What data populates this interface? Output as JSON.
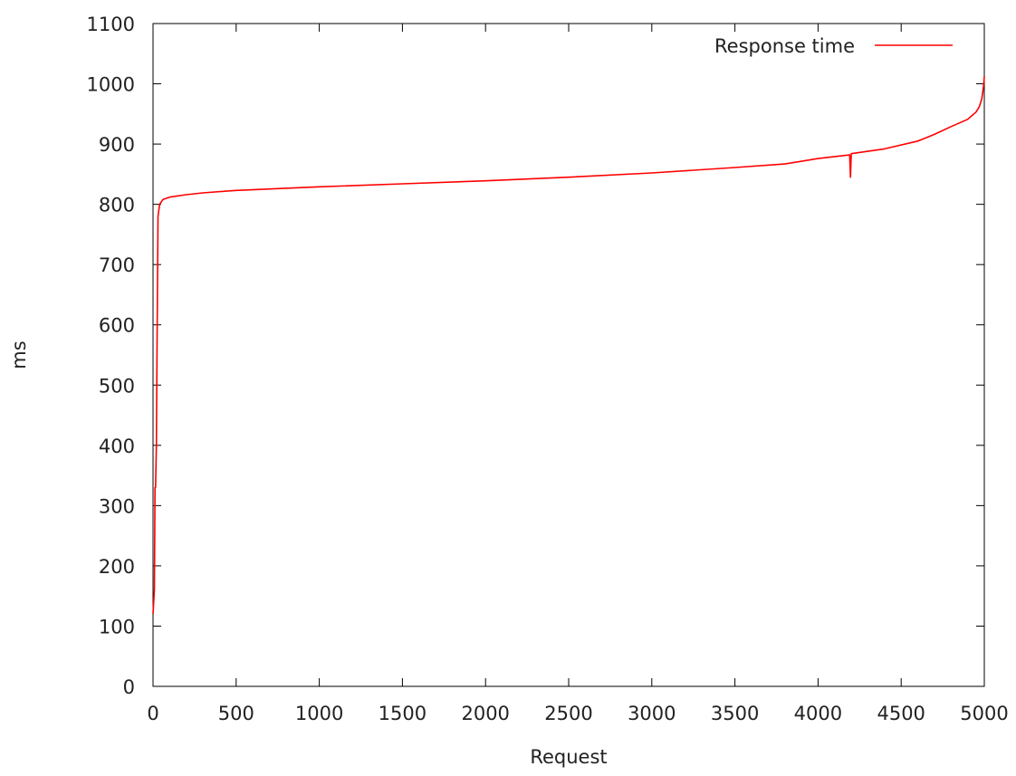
{
  "chart_data": {
    "type": "line",
    "title": "",
    "xlabel": "Request",
    "ylabel": "ms",
    "xlim": [
      0,
      5000
    ],
    "ylim": [
      0,
      1100
    ],
    "xticks": [
      0,
      500,
      1000,
      1500,
      2000,
      2500,
      3000,
      3500,
      4000,
      4500,
      5000
    ],
    "yticks": [
      0,
      100,
      200,
      300,
      400,
      500,
      600,
      700,
      800,
      900,
      1000,
      1100
    ],
    "grid": false,
    "legend": "top-right",
    "series": [
      {
        "name": "Response time",
        "color": "#ff0000",
        "points": [
          [
            0,
            120
          ],
          [
            8,
            160
          ],
          [
            12,
            330
          ],
          [
            15,
            330
          ],
          [
            20,
            400
          ],
          [
            25,
            600
          ],
          [
            30,
            780
          ],
          [
            40,
            800
          ],
          [
            60,
            808
          ],
          [
            100,
            812
          ],
          [
            200,
            816
          ],
          [
            300,
            819
          ],
          [
            500,
            823
          ],
          [
            750,
            826
          ],
          [
            1000,
            829
          ],
          [
            1500,
            834
          ],
          [
            2000,
            839
          ],
          [
            2500,
            845
          ],
          [
            3000,
            852
          ],
          [
            3500,
            861
          ],
          [
            3800,
            867
          ],
          [
            4000,
            876
          ],
          [
            4190,
            882
          ],
          [
            4195,
            845
          ],
          [
            4200,
            884
          ],
          [
            4400,
            892
          ],
          [
            4600,
            905
          ],
          [
            4700,
            916
          ],
          [
            4800,
            929
          ],
          [
            4900,
            941
          ],
          [
            4950,
            953
          ],
          [
            4970,
            962
          ],
          [
            4985,
            975
          ],
          [
            4995,
            995
          ],
          [
            5000,
            1012
          ]
        ]
      }
    ]
  }
}
